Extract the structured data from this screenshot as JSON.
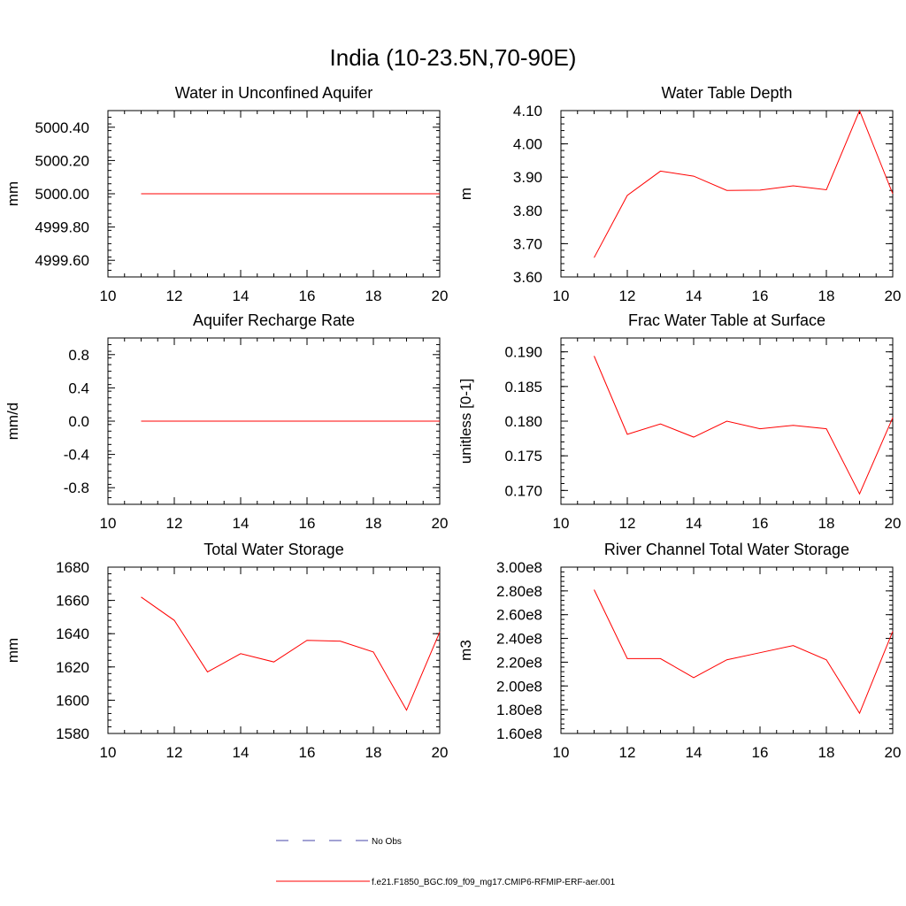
{
  "figure_title": "India (10-23.5N,70-90E)",
  "colors": {
    "model_line": "#ff0000",
    "obs_line": "#4444aa",
    "axis": "#000000"
  },
  "legend": {
    "obs_label": "No Obs",
    "model_label": "f.e21.F1850_BGC.f09_f09_mg17.CMIP6-RFMIP-ERF-aer.001"
  },
  "chart_data": [
    {
      "type": "line",
      "title": "Water in Unconfined Aquifer",
      "ylabel": "mm",
      "xlim": [
        10,
        20
      ],
      "ylim": [
        4999.5,
        5000.5
      ],
      "xticks": [
        10,
        12,
        14,
        16,
        18,
        20
      ],
      "xtick_labels": [
        "10",
        "12",
        "14",
        "16",
        "18",
        "20"
      ],
      "yticks": [
        4999.6,
        4999.8,
        5000.0,
        5000.2,
        5000.4
      ],
      "ytick_labels": [
        "4999.60",
        "4999.80",
        "5000.00",
        "5000.20",
        "5000.40"
      ],
      "x": [
        11,
        12,
        13,
        14,
        15,
        16,
        17,
        18,
        19,
        20
      ],
      "values": [
        5000.0,
        5000.0,
        5000.0,
        5000.0,
        5000.0,
        5000.0,
        5000.0,
        5000.0,
        5000.0,
        5000.0
      ]
    },
    {
      "type": "line",
      "title": "Water Table Depth",
      "ylabel": "m",
      "xlim": [
        10,
        20
      ],
      "ylim": [
        3.6,
        4.1
      ],
      "xticks": [
        10,
        12,
        14,
        16,
        18,
        20
      ],
      "xtick_labels": [
        "10",
        "12",
        "14",
        "16",
        "18",
        "20"
      ],
      "yticks": [
        3.6,
        3.7,
        3.8,
        3.9,
        4.0,
        4.1
      ],
      "ytick_labels": [
        "3.60",
        "3.70",
        "3.80",
        "3.90",
        "4.00",
        "4.10"
      ],
      "x": [
        11,
        12,
        13,
        14,
        15,
        16,
        17,
        18,
        19,
        20
      ],
      "values": [
        3.658,
        3.845,
        3.918,
        3.903,
        3.86,
        3.861,
        3.874,
        3.862,
        4.1,
        3.85
      ]
    },
    {
      "type": "line",
      "title": "Aquifer Recharge Rate",
      "ylabel": "mm/d",
      "xlim": [
        10,
        20
      ],
      "ylim": [
        -1.0,
        1.0
      ],
      "xticks": [
        10,
        12,
        14,
        16,
        18,
        20
      ],
      "xtick_labels": [
        "10",
        "12",
        "14",
        "16",
        "18",
        "20"
      ],
      "yticks": [
        -0.8,
        -0.4,
        0.0,
        0.4,
        0.8
      ],
      "ytick_labels": [
        "-0.8",
        "-0.4",
        "0.0",
        "0.4",
        "0.8"
      ],
      "x": [
        11,
        12,
        13,
        14,
        15,
        16,
        17,
        18,
        19,
        20
      ],
      "values": [
        0,
        0,
        0,
        0,
        0,
        0,
        0,
        0,
        0,
        0
      ]
    },
    {
      "type": "line",
      "title": "Frac Water Table at Surface",
      "ylabel": "unitless [0-1]",
      "xlim": [
        10,
        20
      ],
      "ylim": [
        0.168,
        0.192
      ],
      "xticks": [
        10,
        12,
        14,
        16,
        18,
        20
      ],
      "xtick_labels": [
        "10",
        "12",
        "14",
        "16",
        "18",
        "20"
      ],
      "yticks": [
        0.17,
        0.175,
        0.18,
        0.185,
        0.19
      ],
      "ytick_labels": [
        "0.170",
        "0.175",
        "0.180",
        "0.185",
        "0.190"
      ],
      "x": [
        11,
        12,
        13,
        14,
        15,
        16,
        17,
        18,
        19,
        20
      ],
      "values": [
        0.1894,
        0.1781,
        0.1796,
        0.1777,
        0.18,
        0.1789,
        0.1794,
        0.1789,
        0.1695,
        0.1805
      ]
    },
    {
      "type": "line",
      "title": "Total Water Storage",
      "ylabel": "mm",
      "xlim": [
        10,
        20
      ],
      "ylim": [
        1580,
        1680
      ],
      "xticks": [
        10,
        12,
        14,
        16,
        18,
        20
      ],
      "xtick_labels": [
        "10",
        "12",
        "14",
        "16",
        "18",
        "20"
      ],
      "yticks": [
        1580,
        1600,
        1620,
        1640,
        1660,
        1680
      ],
      "ytick_labels": [
        "1580",
        "1600",
        "1620",
        "1640",
        "1660",
        "1680"
      ],
      "x": [
        11,
        12,
        13,
        14,
        15,
        16,
        17,
        18,
        19,
        20
      ],
      "values": [
        1662,
        1648,
        1617,
        1628,
        1623,
        1636,
        1635.5,
        1629,
        1594,
        1641
      ]
    },
    {
      "type": "line",
      "title": "River Channel Total Water Storage",
      "ylabel": "m3",
      "xlim": [
        10,
        20
      ],
      "ylim": [
        160000000,
        300000000
      ],
      "xticks": [
        10,
        12,
        14,
        16,
        18,
        20
      ],
      "xtick_labels": [
        "10",
        "12",
        "14",
        "16",
        "18",
        "20"
      ],
      "yticks": [
        160000000,
        180000000,
        200000000,
        220000000,
        240000000,
        260000000,
        280000000,
        300000000
      ],
      "ytick_labels": [
        "1.60e8",
        "1.80e8",
        "2.00e8",
        "2.20e8",
        "2.40e8",
        "2.60e8",
        "2.80e8",
        "3.00e8"
      ],
      "x": [
        11,
        12,
        13,
        14,
        15,
        16,
        17,
        18,
        19,
        20
      ],
      "values": [
        281000000,
        223000000,
        223000000,
        207000000,
        222000000,
        228000000,
        234000000,
        222000000,
        177000000,
        246000000
      ]
    }
  ]
}
